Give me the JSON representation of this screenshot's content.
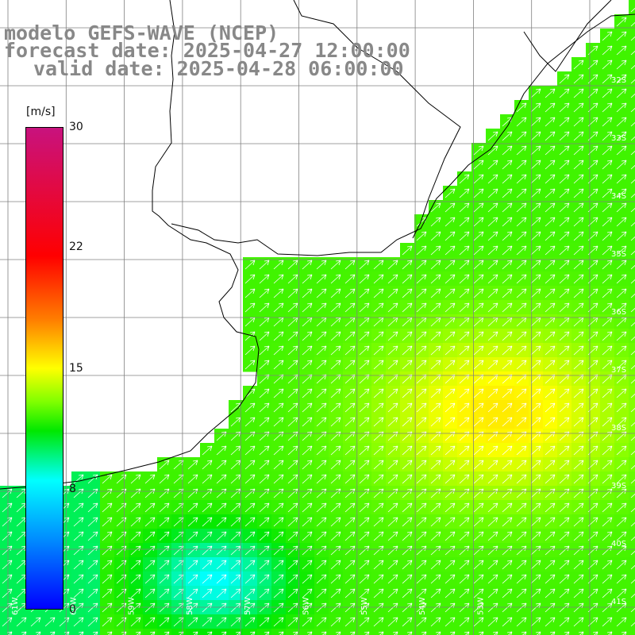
{
  "title": {
    "line1": "modelo GEFS-WAVE (NCEP)",
    "line2": "forecast date: 2025-04-27 12:00:00",
    "line3": "valid date: 2025-04-28 06:00:00"
  },
  "colorbar": {
    "unit": "[m/s]",
    "ticks": [
      "30",
      "22",
      "15",
      "8",
      "0"
    ],
    "min": 0,
    "max": 30
  },
  "map": {
    "lat_labels": [
      "32S",
      "33S",
      "34S",
      "35S",
      "36S",
      "37S",
      "38S",
      "39S",
      "40S",
      "41S"
    ],
    "lon_labels": [
      "61W",
      "60W",
      "59W",
      "58W",
      "57W",
      "56W",
      "55W",
      "54W",
      "53W"
    ],
    "colors": {
      "land": "#ffffff",
      "gridline": "#808080",
      "coast": "#000000",
      "arrow": "#ffffff"
    }
  }
}
